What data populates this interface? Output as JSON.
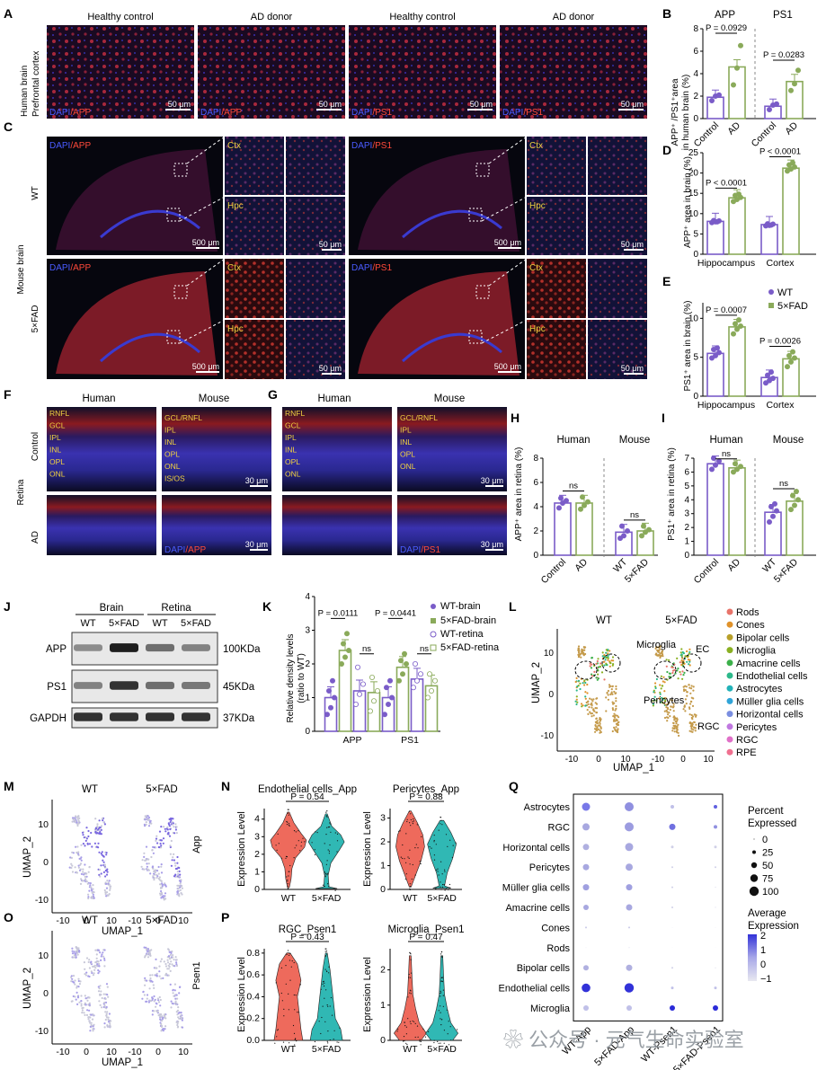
{
  "panels": {
    "A": {
      "letter": "A",
      "row_label_1": "Human brain",
      "row_label_2": "Prefrontal cortex",
      "cols": [
        "Healthy control",
        "AD donor",
        "Healthy control",
        "AD donor"
      ],
      "stains": [
        [
          "DAPI",
          "/APP"
        ],
        [
          "DAPI",
          "/APP"
        ],
        [
          "DAPI",
          "/PS1"
        ],
        [
          "DAPI",
          "/PS1"
        ]
      ],
      "scale": "50 μm"
    },
    "B": {
      "letter": "B",
      "titles": [
        "APP",
        "PS1"
      ],
      "ylabel_1": "APP⁺ /PS1⁺area",
      "ylabel_2": "in human brain (%)",
      "yticks": [
        "0",
        "2",
        "4",
        "6",
        "8"
      ],
      "xticks": [
        "Control",
        "AD",
        "Control",
        "AD"
      ],
      "pvalues": [
        "P = 0.0929",
        "P = 0.0283"
      ]
    },
    "C": {
      "letter": "C",
      "side_label": "Mouse brain",
      "rows": [
        "WT",
        "5×FAD"
      ],
      "stains": [
        [
          "DAPI",
          "/APP"
        ],
        [
          "DAPI",
          "/PS1"
        ]
      ],
      "regions": [
        "Ctx",
        "Hpc"
      ],
      "scale_big": "500 μm",
      "scale_small": "50 μm"
    },
    "D": {
      "letter": "D",
      "ylabel": "APP⁺ area in brain (%)",
      "yticks": [
        "0",
        "5",
        "10",
        "15",
        "20",
        "25"
      ],
      "xticks": [
        "Hippocampus",
        "Cortex"
      ],
      "pvalues": [
        "P < 0.0001",
        "P < 0.0001"
      ]
    },
    "E": {
      "letter": "E",
      "ylabel": "PS1⁺ area in brain (%)",
      "yticks": [
        "0",
        "5",
        "10"
      ],
      "xticks": [
        "Hippocampus",
        "Cortex"
      ],
      "pvalues": [
        "P = 0.0007",
        "P = 0.0026"
      ],
      "legend": [
        "WT",
        "5×FAD"
      ]
    },
    "F": {
      "letter": "F",
      "cols": [
        "Human",
        "Mouse"
      ],
      "side_label": "Retina",
      "rows": [
        "Control",
        "AD"
      ],
      "human_layers": [
        "RNFL",
        "GCL",
        "IPL",
        "INL",
        "OPL",
        "ONL"
      ],
      "mouse_layers": [
        "GCL/RNFL",
        "IPL",
        "INL",
        "OPL",
        "ONL",
        "IS/OS"
      ],
      "stain": [
        "DAPI",
        "/APP"
      ],
      "scale": "30 μm"
    },
    "G": {
      "letter": "G",
      "cols": [
        "Human",
        "Mouse"
      ],
      "human_layers": [
        "RNFL",
        "GCL",
        "IPL",
        "INL",
        "OPL",
        "ONL"
      ],
      "mouse_layers": [
        "GCL/RNFL",
        "IPL",
        "INL",
        "OPL",
        "ONL"
      ],
      "stain": [
        "DAPI",
        "/PS1"
      ],
      "scale": "30 μm"
    },
    "H": {
      "letter": "H",
      "groups": [
        "Human",
        "Mouse"
      ],
      "ylabel": "APP⁺ area in retina (%)",
      "yticks": [
        "0",
        "2",
        "4",
        "6",
        "8"
      ],
      "xticks": [
        "Control",
        "AD",
        "WT",
        "5×FAD"
      ],
      "sig": [
        "ns",
        "ns"
      ]
    },
    "I": {
      "letter": "I",
      "groups": [
        "Human",
        "Mouse"
      ],
      "ylabel": "PS1⁺ area in retina (%)",
      "yticks": [
        "0",
        "1",
        "2",
        "3",
        "4",
        "5",
        "6",
        "7"
      ],
      "xticks": [
        "Control",
        "AD",
        "WT",
        "5×FAD"
      ],
      "sig": [
        "ns",
        "ns"
      ]
    },
    "J": {
      "letter": "J",
      "tissues": [
        "Brain",
        "Retina"
      ],
      "lanes": [
        "WT",
        "5×FAD",
        "WT",
        "5×FAD"
      ],
      "proteins": [
        "APP",
        "PS1",
        "GAPDH"
      ],
      "sizes": [
        "100KDa",
        "45KDa",
        "37KDa"
      ]
    },
    "K": {
      "letter": "K",
      "ylabel_1": "Relative density levels",
      "ylabel_2": "(ratio to WT)",
      "yticks": [
        "0",
        "1",
        "2",
        "3",
        "4"
      ],
      "xticks": [
        "APP",
        "PS1"
      ],
      "pvalues": [
        "P = 0.0111",
        "P = 0.0441"
      ],
      "sig": [
        "ns",
        "ns"
      ],
      "legend": [
        "WT-brain",
        "5×FAD-brain",
        "WT-retina",
        "5×FAD-retina"
      ]
    },
    "L": {
      "letter": "L",
      "titles": [
        "WT",
        "5×FAD"
      ],
      "xlabel": "UMAP_1",
      "ylabel": "UMAP_2",
      "xticks": [
        "-10",
        "0",
        "10",
        "-10",
        "0",
        "10"
      ],
      "yticks": [
        "10",
        "0",
        "-10"
      ],
      "annotations": [
        "Microglia",
        "EC",
        "Pericytes",
        "RGC"
      ],
      "legend": [
        "Rods",
        "Cones",
        "Bipolar cells",
        "Microglia",
        "Amacrine cells",
        "Endothelial cells",
        "Astrocytes",
        "Müller glia cells",
        "Horizontal cells",
        "Pericytes",
        "RGC",
        "RPE"
      ],
      "legend_colors": [
        "#e8746a",
        "#e0922a",
        "#b8a02a",
        "#8ab022",
        "#3cb04a",
        "#2cb88a",
        "#22b2b8",
        "#30a4d8",
        "#7a8ee0",
        "#c078e0",
        "#e070c8",
        "#f07090"
      ]
    },
    "M": {
      "letter": "M",
      "titles": [
        "WT",
        "5×FAD"
      ],
      "gene": "App",
      "xlabel": "UMAP_1",
      "ylabel": "UMAP_2",
      "xticks": [
        "-10",
        "0",
        "10",
        "-10",
        "0",
        "10"
      ],
      "yticks": [
        "10",
        "0",
        "-10"
      ]
    },
    "N": {
      "letter": "N",
      "titles": [
        "Endothelial cells_App",
        "Pericytes_App"
      ],
      "pvalues": [
        "P = 0.54",
        "P = 0.88"
      ],
      "ylabel": "Expression Level",
      "yticks_1": [
        "0",
        "1",
        "2",
        "3",
        "4"
      ],
      "yticks_2": [
        "0",
        "1",
        "2",
        "3"
      ],
      "xticks": [
        "WT",
        "5×FAD"
      ]
    },
    "O": {
      "letter": "O",
      "titles": [
        "WT",
        "5×FAD"
      ],
      "gene": "Psen1",
      "xlabel": "UMAP_1",
      "ylabel": "UMAP_2",
      "xticks": [
        "-10",
        "0",
        "10",
        "-10",
        "0",
        "10"
      ],
      "yticks": [
        "10",
        "0",
        "-10"
      ]
    },
    "P": {
      "letter": "P",
      "titles": [
        "RGC_Psen1",
        "Microglia_Psen1"
      ],
      "pvalues": [
        "P = 0.43",
        "P = 0.47"
      ],
      "ylabel": "Expression Level",
      "yticks_1": [
        "0.0",
        "0.2",
        "0.4",
        "0.6",
        "0.8"
      ],
      "yticks_2": [
        "0",
        "1",
        "2"
      ],
      "xticks": [
        "WT",
        "5×FAD"
      ]
    },
    "Q": {
      "letter": "Q",
      "rows": [
        "Astrocytes",
        "RGC",
        "Horizontal cells",
        "Pericytes",
        "Müller glia cells",
        "Amacrine cells",
        "Cones",
        "Rods",
        "Bipolar cells",
        "Endothelial cells",
        "Microglia"
      ],
      "cols": [
        "WT-App",
        "5×FAD-App",
        "WT-Psen1",
        "5×FAD-Psen1"
      ],
      "pct_title_1": "Percent",
      "pct_title_2": "Expressed",
      "pct_levels": [
        "0",
        "25",
        "50",
        "75",
        "100"
      ],
      "avg_title_1": "Average",
      "avg_title_2": "Expression",
      "avg_ticks": [
        "2",
        "1",
        "0",
        "−1"
      ]
    }
  },
  "chart_data": [
    {
      "panel": "B",
      "type": "bar",
      "ylabel": "APP⁺ /PS1⁺area in human brain (%)",
      "ylim": [
        0,
        8
      ],
      "categories": [
        "APP Control",
        "APP AD",
        "PS1 Control",
        "PS1 AD"
      ],
      "values": [
        1.9,
        4.6,
        1.1,
        3.3
      ],
      "points": [
        [
          1.6,
          2.0,
          2.1
        ],
        [
          3.0,
          4.5,
          6.5
        ],
        [
          0.8,
          1.2,
          1.3
        ],
        [
          2.5,
          3.1,
          4.3
        ]
      ]
    },
    {
      "panel": "D",
      "type": "bar",
      "ylabel": "APP⁺ area in brain (%)",
      "ylim": [
        0,
        25
      ],
      "categories": [
        "Hippocampus WT",
        "Hippocampus 5×FAD",
        "Cortex WT",
        "Cortex 5×FAD"
      ],
      "values": [
        8.1,
        13.9,
        7.3,
        21.2
      ],
      "points": [
        [
          7.8,
          8.0,
          8.2,
          8.3,
          8.0
        ],
        [
          13.0,
          13.5,
          14.0,
          14.5,
          14.8
        ],
        [
          7.0,
          7.1,
          7.4,
          7.5,
          7.2
        ],
        [
          20.5,
          21.0,
          21.5,
          22.0,
          22.5
        ]
      ]
    },
    {
      "panel": "E",
      "type": "bar",
      "ylabel": "PS1⁺ area in brain (%)",
      "ylim": [
        0,
        12
      ],
      "categories": [
        "Hippocampus WT",
        "Hippocampus 5×FAD",
        "Cortex WT",
        "Cortex 5×FAD"
      ],
      "values": [
        5.5,
        8.9,
        2.4,
        4.8
      ],
      "points": [
        [
          4.9,
          5.2,
          5.6,
          6.0,
          6.2
        ],
        [
          8.0,
          8.6,
          9.0,
          9.3,
          9.8
        ],
        [
          1.7,
          2.0,
          2.3,
          2.7,
          3.1
        ],
        [
          3.8,
          4.4,
          4.9,
          5.2,
          5.7
        ]
      ]
    },
    {
      "panel": "H",
      "type": "bar",
      "ylabel": "APP⁺ area in retina (%)",
      "ylim": [
        0,
        8
      ],
      "categories": [
        "Control",
        "AD",
        "WT",
        "5×FAD"
      ],
      "values": [
        4.3,
        4.3,
        1.9,
        2.0
      ],
      "points": [
        [
          3.9,
          4.3,
          4.5,
          4.7
        ],
        [
          3.8,
          4.1,
          4.4,
          4.8
        ],
        [
          1.4,
          1.6,
          2.0,
          2.4
        ],
        [
          1.6,
          1.9,
          2.1,
          2.4
        ]
      ]
    },
    {
      "panel": "I",
      "type": "bar",
      "ylabel": "PS1⁺ area in retina (%)",
      "ylim": [
        0,
        7
      ],
      "categories": [
        "Control",
        "AD",
        "WT",
        "5×FAD"
      ],
      "values": [
        6.6,
        6.3,
        3.1,
        3.9
      ],
      "points": [
        [
          6.2,
          6.5,
          6.8,
          7.0
        ],
        [
          6.0,
          6.2,
          6.4,
          6.6
        ],
        [
          2.4,
          2.8,
          3.2,
          3.5,
          3.7
        ],
        [
          3.3,
          3.6,
          4.0,
          4.3,
          4.6
        ]
      ]
    },
    {
      "panel": "K",
      "type": "bar",
      "ylabel": "Relative density levels (ratio to WT)",
      "ylim": [
        0,
        4
      ],
      "categories": [
        "APP",
        "PS1"
      ],
      "series": [
        {
          "name": "WT-brain",
          "values": [
            1.0,
            1.0
          ]
        },
        {
          "name": "5×FAD-brain",
          "values": [
            2.4,
            1.9
          ]
        },
        {
          "name": "WT-retina",
          "values": [
            1.2,
            1.55
          ]
        },
        {
          "name": "5×FAD-retina",
          "values": [
            1.15,
            1.35
          ]
        }
      ]
    }
  ]
}
